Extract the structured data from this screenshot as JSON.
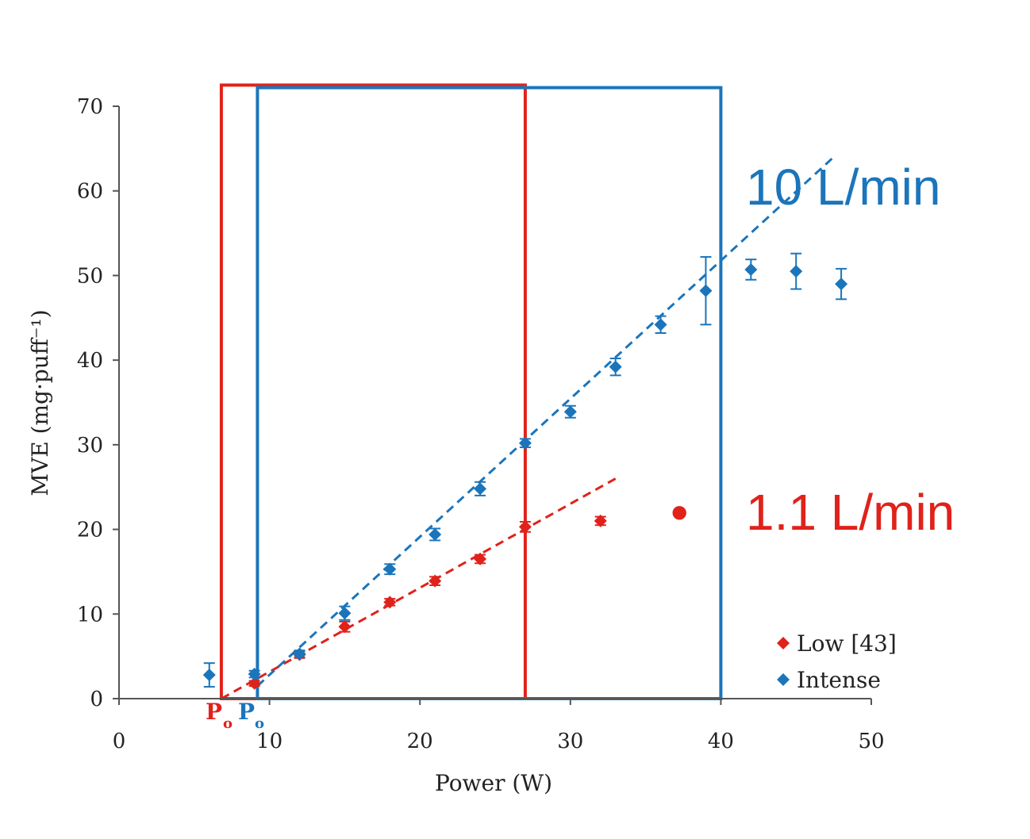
{
  "chart_data": {
    "type": "scatter",
    "title": "",
    "xlabel": "Power (W)",
    "ylabel": "MVE (mg·puff⁻¹)",
    "xlim": [
      0,
      50
    ],
    "ylim": [
      0,
      70
    ],
    "xticks": [
      0,
      10,
      20,
      30,
      40,
      50
    ],
    "yticks": [
      0,
      10,
      20,
      30,
      40,
      50,
      60,
      70
    ],
    "grid": false,
    "legend_position": "bottom-right",
    "series": [
      {
        "name": "Low [43]",
        "color": "#e0221b",
        "x": [
          9,
          12,
          15,
          18,
          21,
          24,
          27,
          32
        ],
        "y": [
          1.8,
          5.2,
          8.5,
          11.4,
          13.9,
          16.5,
          20.3,
          21.0
        ],
        "err": [
          0.3,
          0.4,
          0.6,
          0.4,
          0.5,
          0.5,
          0.6,
          0.5
        ],
        "trendline": {
          "x": [
            6.8,
            33
          ],
          "y": [
            0,
            26
          ]
        }
      },
      {
        "name": "Intense",
        "color": "#1b75bb",
        "x": [
          6,
          9,
          12,
          15,
          18,
          21,
          24,
          27,
          30,
          33,
          36,
          39,
          42,
          45,
          48
        ],
        "y": [
          2.8,
          2.9,
          5.3,
          10.1,
          15.3,
          19.4,
          24.8,
          30.2,
          33.9,
          39.2,
          44.2,
          48.2,
          50.7,
          50.5,
          49.0
        ],
        "err": [
          1.4,
          0.4,
          0.4,
          0.8,
          0.6,
          0.7,
          0.8,
          0.5,
          0.7,
          1.0,
          1.0,
          4.0,
          1.2,
          2.1,
          1.8
        ],
        "trendline": {
          "x": [
            9.2,
            47.5
          ],
          "y": [
            1.5,
            64
          ]
        }
      }
    ],
    "regions": [
      {
        "label": "1.1 L/min",
        "color": "#e0221b",
        "x": [
          6.8,
          27
        ],
        "y": [
          0,
          72.5
        ]
      },
      {
        "label": "10 L/min",
        "color": "#1b75bb",
        "x": [
          9.2,
          40
        ],
        "y": [
          0,
          72.2
        ]
      }
    ],
    "annotations": {
      "low_p0": {
        "main": "P",
        "sub": "o",
        "color": "#e0221b"
      },
      "intense_p0": {
        "main": "P",
        "sub": "o",
        "color": "#1b75bb"
      },
      "low_bullet": "•"
    }
  }
}
